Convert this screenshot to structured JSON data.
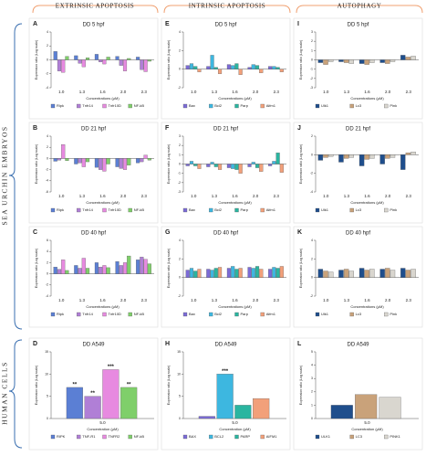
{
  "headers": [
    "EXTRINSIC APOPTOSIS",
    "INTRINSIC APOPTOSIS",
    "AUTOPHAGY"
  ],
  "row_labels": [
    "SEA URCHIN EMBRYOS",
    "HUMAN CELLS"
  ],
  "chart_data": [
    {
      "type": "bar",
      "label": "A",
      "title": "DD 5 hpf",
      "x_label": "Concentrations (μM)",
      "y_label": "Expression ratio (Log scale)",
      "categories": [
        "1.0",
        "1.3",
        "1.6",
        "2.0",
        "2.3"
      ],
      "ylim": [
        -4,
        4
      ],
      "yticks": [
        -4,
        -2,
        0,
        2,
        4
      ],
      "series": [
        {
          "name": "Ripk",
          "color": "#5b7fd4",
          "values": [
            1.2,
            0.6,
            0.8,
            0.5,
            0.4
          ]
        },
        {
          "name": "Tnfr14",
          "color": "#b07fd6",
          "values": [
            -1.6,
            -0.5,
            -0.3,
            -0.8,
            -1.4
          ]
        },
        {
          "name": "Tnfr10D",
          "color": "#e78ae0",
          "values": [
            -1.8,
            -1.0,
            -0.6,
            -1.6,
            -1.7
          ]
        },
        {
          "name": "NF-kB",
          "color": "#7fcf6a",
          "values": [
            0.5,
            0.3,
            0.4,
            0.2,
            -0.2
          ]
        }
      ]
    },
    {
      "type": "bar",
      "label": "B",
      "title": "DD 21 hpf",
      "x_label": "Concentrations (μM)",
      "y_label": "Expression ratio (Log scale)",
      "categories": [
        "1.0",
        "1.3",
        "1.6",
        "2.0",
        "2.3"
      ],
      "ylim": [
        -6,
        4
      ],
      "yticks": [
        -6,
        -4,
        -2,
        0,
        2,
        4
      ],
      "series": [
        {
          "name": "Ripk",
          "color": "#5b7fd4",
          "values": [
            -0.5,
            -1.0,
            -1.6,
            -1.5,
            -0.8
          ]
        },
        {
          "name": "Tnfr14",
          "color": "#b07fd6",
          "values": [
            -0.3,
            -0.8,
            -2.0,
            -1.8,
            -0.6
          ]
        },
        {
          "name": "Tnfr10D",
          "color": "#e78ae0",
          "values": [
            2.5,
            -1.5,
            -2.3,
            -2.0,
            0.6
          ]
        },
        {
          "name": "NF-kB",
          "color": "#7fcf6a",
          "values": [
            -0.4,
            -0.6,
            -1.0,
            -1.2,
            -0.3
          ]
        }
      ]
    },
    {
      "type": "bar",
      "label": "C",
      "title": "DD 40 hpf",
      "x_label": "Concentrations (μM)",
      "y_label": "Expression ratio (Log scale)",
      "categories": [
        "1.0",
        "1.3",
        "1.6",
        "2.0",
        "2.3"
      ],
      "ylim": [
        -4,
        6
      ],
      "yticks": [
        -4,
        -2,
        0,
        2,
        4,
        6
      ],
      "series": [
        {
          "name": "Ripk",
          "color": "#5b7fd4",
          "values": [
            1.2,
            1.5,
            2.0,
            2.2,
            2.5
          ]
        },
        {
          "name": "Tnfr14",
          "color": "#b07fd6",
          "values": [
            0.8,
            1.0,
            1.2,
            1.5,
            3.0
          ]
        },
        {
          "name": "Tnfr10D",
          "color": "#e78ae0",
          "values": [
            2.5,
            2.8,
            1.5,
            2.0,
            2.6
          ]
        },
        {
          "name": "NF-kB",
          "color": "#7fcf6a",
          "values": [
            0.6,
            1.0,
            1.1,
            3.2,
            1.8
          ]
        }
      ]
    },
    {
      "type": "bar",
      "label": "D",
      "title": "DD A549",
      "x_label": "Concentration (μM)",
      "y_label": "Expression ratio (Log scale)",
      "categories": [
        "5.0"
      ],
      "ylim": [
        0,
        15
      ],
      "yticks": [
        0,
        5,
        10,
        15
      ],
      "series": [
        {
          "name": "RIPK",
          "color": "#5b7fd4",
          "values": [
            7
          ],
          "significance": [
            "**"
          ]
        },
        {
          "name": "TNF-R1",
          "color": "#b07fd6",
          "values": [
            5
          ],
          "significance": [
            "**"
          ]
        },
        {
          "name": "TNFR2",
          "color": "#e78ae0",
          "values": [
            11
          ],
          "significance": [
            "***"
          ]
        },
        {
          "name": "NF-kB",
          "color": "#7fcf6a",
          "values": [
            7
          ],
          "significance": [
            "**"
          ]
        }
      ]
    },
    {
      "type": "bar",
      "label": "E",
      "title": "DD 5 hpf",
      "x_label": "Concentrations (μM)",
      "y_label": "Expression ratio (Log scale)",
      "categories": [
        "1.0",
        "1.3",
        "1.6",
        "2.0",
        "2.3"
      ],
      "ylim": [
        -2,
        4
      ],
      "yticks": [
        -2,
        0,
        2,
        4
      ],
      "series": [
        {
          "name": "Bax",
          "color": "#7b6bd6",
          "values": [
            0.4,
            0.3,
            0.5,
            0.2,
            0.3
          ]
        },
        {
          "name": "Bcl2",
          "color": "#3db7e0",
          "values": [
            0.6,
            1.5,
            0.4,
            0.5,
            0.3
          ]
        },
        {
          "name": "Parp",
          "color": "#2ab5a0",
          "values": [
            0.3,
            0.2,
            0.6,
            0.4,
            0.2
          ]
        },
        {
          "name": "Aifm1",
          "color": "#f2a07a",
          "values": [
            -0.3,
            -0.5,
            -0.6,
            -0.4,
            -0.3
          ]
        }
      ]
    },
    {
      "type": "bar",
      "label": "F",
      "title": "DD 21 hpf",
      "x_label": "Concentrations (μM)",
      "y_label": "Expression ratio (Log scale)",
      "categories": [
        "1.0",
        "1.3",
        "1.6",
        "2.0",
        "2.3"
      ],
      "ylim": [
        -3,
        3
      ],
      "yticks": [
        -3,
        -2,
        -1,
        0,
        1,
        2,
        3
      ],
      "series": [
        {
          "name": "Bax",
          "color": "#7b6bd6",
          "values": [
            -0.2,
            -0.3,
            -0.4,
            -0.3,
            -0.2
          ]
        },
        {
          "name": "Bcl2",
          "color": "#3db7e0",
          "values": [
            0.3,
            0.2,
            -0.5,
            0.2,
            0.3
          ]
        },
        {
          "name": "Parp",
          "color": "#2ab5a0",
          "values": [
            -0.2,
            -0.3,
            -0.6,
            -0.4,
            1.2
          ]
        },
        {
          "name": "Aifm1",
          "color": "#f2a07a",
          "values": [
            -0.5,
            -0.6,
            -1.0,
            -0.8,
            -0.9
          ]
        }
      ]
    },
    {
      "type": "bar",
      "label": "G",
      "title": "DD 40 hpf",
      "x_label": "Concentrations (μM)",
      "y_label": "Expression ratio (Log scale)",
      "categories": [
        "1.0",
        "1.3",
        "1.6",
        "2.0",
        "2.3"
      ],
      "ylim": [
        -2,
        4
      ],
      "yticks": [
        -2,
        0,
        2,
        4
      ],
      "series": [
        {
          "name": "Bax",
          "color": "#7b6bd6",
          "values": [
            0.8,
            0.9,
            1.0,
            1.1,
            0.9
          ]
        },
        {
          "name": "Bcl2",
          "color": "#3db7e0",
          "values": [
            1.0,
            0.8,
            1.2,
            1.0,
            1.1
          ]
        },
        {
          "name": "Parp",
          "color": "#2ab5a0",
          "values": [
            0.7,
            1.0,
            0.9,
            1.2,
            1.0
          ]
        },
        {
          "name": "Aifm1",
          "color": "#f2a07a",
          "values": [
            0.9,
            1.1,
            1.0,
            0.9,
            1.2
          ]
        }
      ]
    },
    {
      "type": "bar",
      "label": "H",
      "title": "DD A549",
      "x_label": "Concentration (μM)",
      "y_label": "Expression ratio (Log scale)",
      "categories": [
        "5.0"
      ],
      "ylim": [
        0,
        15
      ],
      "yticks": [
        0,
        5,
        10,
        15
      ],
      "series": [
        {
          "name": "BAX",
          "color": "#7b6bd6",
          "values": [
            0.5
          ],
          "significance": [
            ""
          ]
        },
        {
          "name": "BCL2",
          "color": "#3db7e0",
          "values": [
            10
          ],
          "significance": [
            "***"
          ]
        },
        {
          "name": "PARP",
          "color": "#2ab5a0",
          "values": [
            3
          ],
          "significance": [
            ""
          ]
        },
        {
          "name": "AIFM1",
          "color": "#f2a07a",
          "values": [
            4.5
          ],
          "significance": [
            ""
          ]
        }
      ]
    },
    {
      "type": "bar",
      "label": "I",
      "title": "DD 5 hpf",
      "x_label": "Concentrations (μM)",
      "y_label": "Expression ratio (Log scale)",
      "categories": [
        "1.0",
        "1.3",
        "1.6",
        "2.0",
        "2.3"
      ],
      "ylim": [
        -3,
        3
      ],
      "yticks": [
        -3,
        -2,
        -1,
        0,
        1,
        2,
        3
      ],
      "series": [
        {
          "name": "Ulk1",
          "color": "#1f4e8c",
          "values": [
            -0.3,
            -0.2,
            -0.4,
            -0.3,
            0.5
          ]
        },
        {
          "name": "Lc3",
          "color": "#c9a27a",
          "values": [
            -0.5,
            -0.3,
            -0.5,
            -0.4,
            0.3
          ]
        },
        {
          "name": "Pink",
          "color": "#d9d6cf",
          "values": [
            -0.2,
            -0.4,
            -0.3,
            -0.2,
            0.4
          ]
        }
      ]
    },
    {
      "type": "bar",
      "label": "J",
      "title": "DD 21 hpf",
      "x_label": "Concentrations (μM)",
      "y_label": "Expression ratio (Log scale)",
      "categories": [
        "1.0",
        "1.3",
        "1.6",
        "2.0",
        "2.3"
      ],
      "ylim": [
        -4,
        2
      ],
      "yticks": [
        -4,
        -2,
        0,
        2
      ],
      "series": [
        {
          "name": "Ulk1",
          "color": "#1f4e8c",
          "values": [
            -0.6,
            -0.8,
            -1.2,
            -1.0,
            -1.6
          ]
        },
        {
          "name": "Lc3",
          "color": "#c9a27a",
          "values": [
            -0.3,
            -0.4,
            -0.5,
            -0.4,
            0.2
          ]
        },
        {
          "name": "Pink",
          "color": "#d9d6cf",
          "values": [
            -0.2,
            -0.3,
            -0.4,
            -0.3,
            0.3
          ]
        }
      ]
    },
    {
      "type": "bar",
      "label": "K",
      "title": "DD 40 hpf",
      "x_label": "Concentrations (μM)",
      "y_label": "Expression ratio (Log scale)",
      "categories": [
        "1.0",
        "1.3",
        "1.6",
        "2.0",
        "2.3"
      ],
      "ylim": [
        -2,
        4
      ],
      "yticks": [
        -2,
        0,
        2,
        4
      ],
      "series": [
        {
          "name": "Ulk1",
          "color": "#1f4e8c",
          "values": [
            0.9,
            0.8,
            1.0,
            0.9,
            1.0
          ]
        },
        {
          "name": "Lc3",
          "color": "#c9a27a",
          "values": [
            0.7,
            0.9,
            0.8,
            1.0,
            0.8
          ]
        },
        {
          "name": "Pink",
          "color": "#d9d6cf",
          "values": [
            0.6,
            0.7,
            0.9,
            0.8,
            0.9
          ]
        }
      ]
    },
    {
      "type": "bar",
      "label": "L",
      "title": "DD A549",
      "x_label": "Concentration (μM)",
      "y_label": "Expression ratio (Log scale)",
      "categories": [
        "5.0"
      ],
      "ylim": [
        0,
        5
      ],
      "yticks": [
        0,
        1,
        2,
        3,
        4,
        5
      ],
      "series": [
        {
          "name": "ULK1",
          "color": "#1f4e8c",
          "values": [
            1
          ]
        },
        {
          "name": "LC3",
          "color": "#c9a27a",
          "values": [
            1.8
          ]
        },
        {
          "name": "PINK1",
          "color": "#d9d6cf",
          "values": [
            1.6
          ]
        }
      ]
    }
  ]
}
